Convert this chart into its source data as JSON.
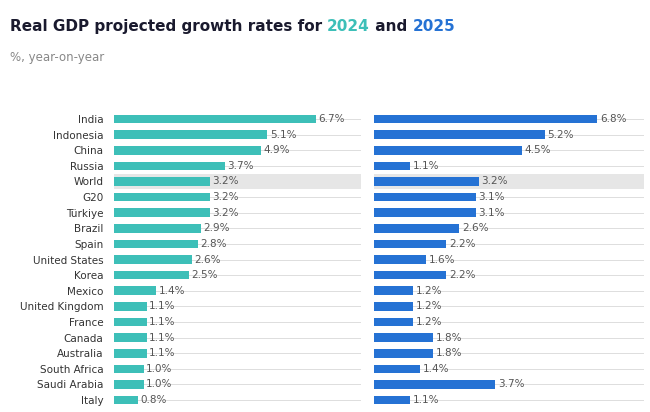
{
  "title_parts": [
    "Real GDP projected growth rates for ",
    "2024",
    " and ",
    "2025"
  ],
  "subtitle": "%, year-on-year",
  "countries": [
    "India",
    "Indonesia",
    "China",
    "Russia",
    "World",
    "G20",
    "Türkiye",
    "Brazil",
    "Spain",
    "United States",
    "Korea",
    "Mexico",
    "United Kingdom",
    "France",
    "Canada",
    "Australia",
    "South Africa",
    "Saudi Arabia",
    "Italy"
  ],
  "values_2024": [
    6.7,
    5.1,
    4.9,
    3.7,
    3.2,
    3.2,
    3.2,
    2.9,
    2.8,
    2.6,
    2.5,
    1.4,
    1.1,
    1.1,
    1.1,
    1.1,
    1.0,
    1.0,
    0.8
  ],
  "values_2025": [
    6.8,
    5.2,
    4.5,
    1.1,
    3.2,
    3.1,
    3.1,
    2.6,
    2.2,
    1.6,
    2.2,
    1.2,
    1.2,
    1.2,
    1.8,
    1.8,
    1.4,
    3.7,
    1.1
  ],
  "color_2024": "#3dbfb8",
  "color_2025": "#2572d4",
  "color_world_bg": "#e6e6e6",
  "color_2024_year": "#3dbfb8",
  "color_2025_year": "#2572d4",
  "color_title_black": "#1a1a2e",
  "background_color": "#ffffff",
  "bar_height": 0.55,
  "label_fontsize": 7.5,
  "title_fontsize": 11,
  "subtitle_fontsize": 8.5,
  "world_row_index": 4,
  "gridline_color": "#d0d0d0",
  "label_color": "#555555",
  "country_label_color": "#333333"
}
